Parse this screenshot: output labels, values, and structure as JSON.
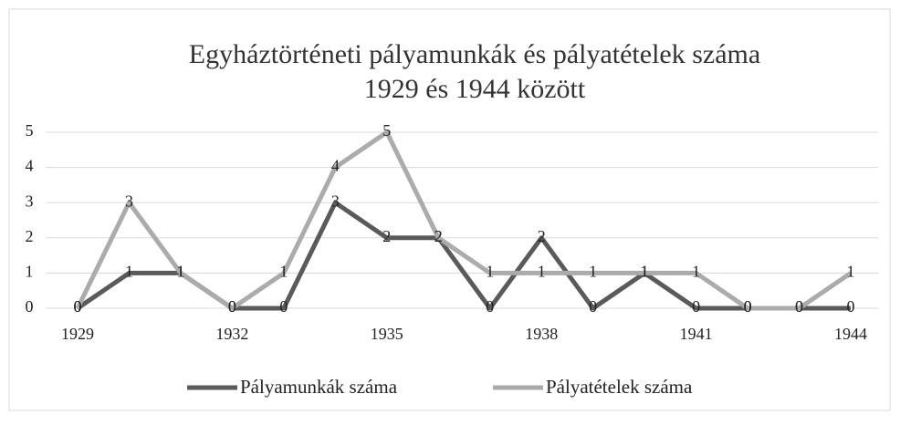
{
  "chart_data": {
    "type": "line",
    "title": "Egyháztörténeti pályamunkák és pályatételek száma",
    "subtitle": "1929 és 1944 között",
    "x": [
      1929,
      1930,
      1931,
      1932,
      1933,
      1934,
      1935,
      1936,
      1937,
      1938,
      1939,
      1940,
      1941,
      1942,
      1943,
      1944
    ],
    "series": [
      {
        "name": "Pályamunkák száma",
        "color": "#5a5a5a",
        "values": [
          0,
          1,
          1,
          0,
          0,
          3,
          2,
          2,
          0,
          2,
          0,
          1,
          0,
          0,
          0,
          0
        ]
      },
      {
        "name": "Pályatételek száma",
        "color": "#ababab",
        "values": [
          0,
          3,
          1,
          0,
          1,
          4,
          5,
          2,
          1,
          1,
          1,
          1,
          1,
          0,
          0,
          1
        ]
      }
    ],
    "xlim": [
      1929,
      1944
    ],
    "xticks": [
      1929,
      1932,
      1935,
      1938,
      1941,
      1944
    ],
    "ylim": [
      0,
      5
    ],
    "yticks": [
      0,
      1,
      2,
      3,
      4,
      5
    ],
    "grid": true,
    "legend": "bottom"
  }
}
